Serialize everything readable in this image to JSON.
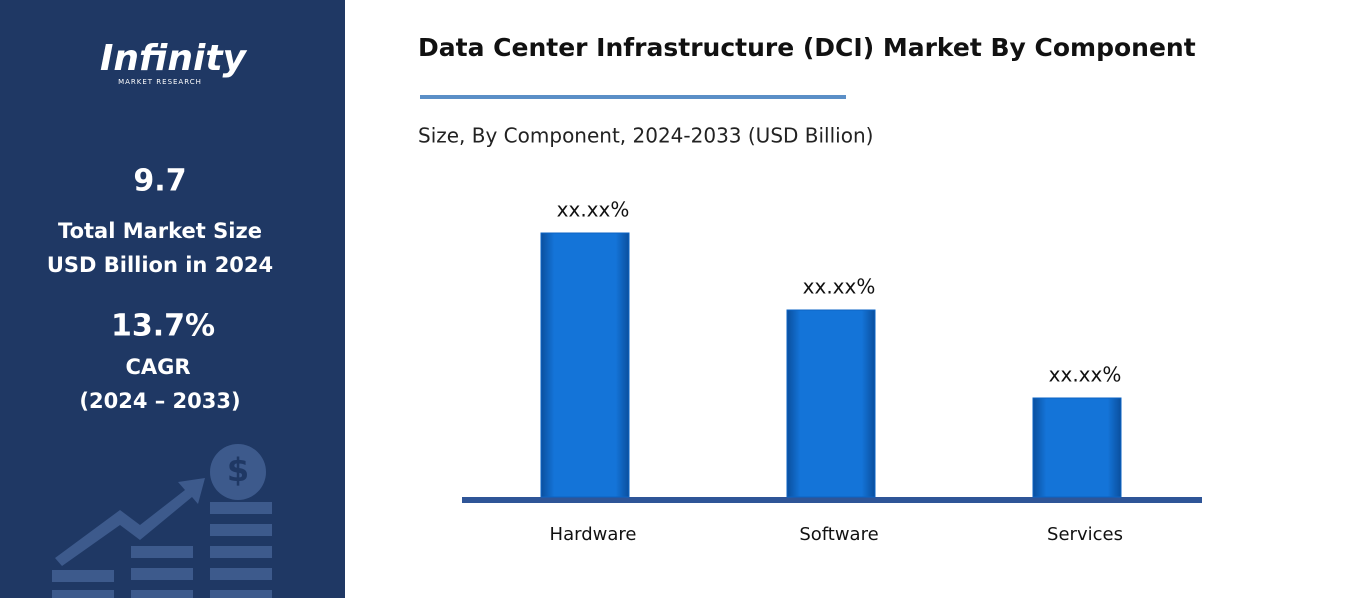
{
  "sidebar": {
    "logo": {
      "name": "Infinity",
      "tagline": "MARKET RESEARCH"
    },
    "market_size": {
      "value": "9.7",
      "label_line1": "Total Market Size",
      "label_line2": "USD Billion in 2024"
    },
    "cagr": {
      "value": "13.7%",
      "label": "CAGR",
      "period": "(2024 – 2033)"
    }
  },
  "chart_data": {
    "type": "bar",
    "title": "Data Center Infrastructure (DCI) Market By Component",
    "subtitle": "Size, By Component, 2024-2033 (USD Billion)",
    "categories": [
      "Hardware",
      "Software",
      "Services"
    ],
    "values": [
      48,
      34,
      18
    ],
    "value_labels": [
      "xx.xx%",
      "xx.xx%",
      "xx.xx%"
    ],
    "color": "#0b63c4"
  }
}
